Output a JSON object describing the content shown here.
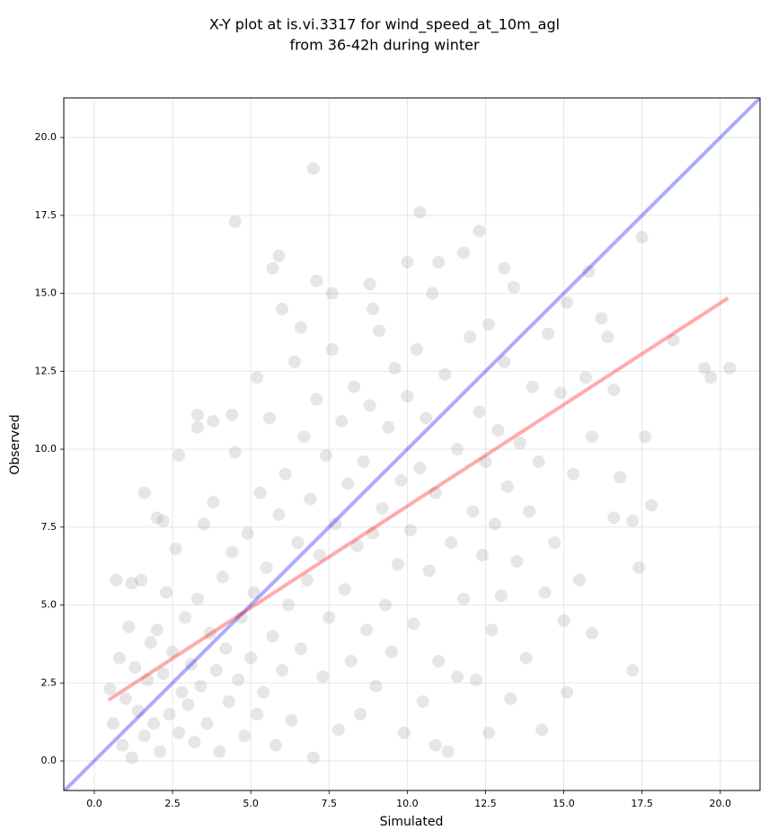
{
  "chart_data": {
    "type": "scatter",
    "title": [
      "X-Y plot at is.vi.3317 for wind_speed_at_10m_agl",
      "from 36-42h during winter"
    ],
    "x_label": "Simulated",
    "y_label": "Observed",
    "color": "gray",
    "grid": true,
    "xlim": [
      -0.975,
      21.27
    ],
    "ylim": [
      -0.95,
      21.27
    ],
    "xticks": [
      {
        "value": 0,
        "label": "0.0"
      },
      2.5,
      {
        "value": 5,
        "label": "5.0"
      },
      7.5,
      {
        "value": 10,
        "label": "10.0"
      },
      12.5,
      {
        "value": 15,
        "label": "15.0"
      },
      17.5,
      {
        "value": 20,
        "label": "20.0"
      }
    ],
    "yticks": [
      {
        "value": 0,
        "label": "0.0"
      },
      2.5,
      {
        "value": 5,
        "label": "5.0"
      },
      7.5,
      {
        "value": 10,
        "label": "10.0"
      },
      12.5,
      {
        "value": 15,
        "label": "15.0"
      },
      17.5,
      {
        "value": 20,
        "label": "20.0"
      }
    ],
    "x": [
      0.5,
      0.6,
      0.8,
      0.9,
      1.0,
      1.1,
      1.2,
      1.3,
      1.4,
      1.5,
      1.6,
      1.7,
      1.8,
      1.9,
      2.0,
      2.1,
      2.2,
      2.3,
      2.4,
      2.5,
      2.6,
      2.7,
      2.8,
      2.9,
      3.0,
      0.7,
      1.2,
      2.0,
      2.2,
      3.1,
      3.2,
      3.3,
      3.4,
      3.5,
      3.6,
      3.7,
      3.8,
      3.9,
      4.0,
      4.1,
      4.2,
      4.3,
      4.4,
      4.5,
      4.6,
      4.7,
      4.8,
      4.9,
      5.0,
      5.1,
      5.2,
      5.3,
      5.4,
      5.5,
      5.6,
      5.7,
      5.8,
      5.9,
      6.0,
      4.4,
      5.2,
      3.3,
      6.1,
      6.2,
      6.3,
      6.4,
      6.5,
      6.6,
      6.7,
      6.8,
      6.9,
      7.0,
      7.1,
      7.2,
      7.3,
      7.4,
      7.5,
      7.6,
      7.7,
      7.8,
      7.9,
      8.0,
      8.1,
      8.2,
      8.3,
      8.4,
      8.5,
      8.6,
      8.7,
      8.8,
      8.9,
      9.0,
      9.1,
      9.2,
      9.3,
      9.4,
      9.5,
      9.6,
      9.7,
      9.8,
      9.9,
      10.0,
      6.6,
      8.9,
      7.6,
      8.8,
      6.0,
      10.1,
      10.2,
      10.3,
      10.4,
      10.5,
      10.6,
      10.7,
      10.8,
      10.9,
      11.0,
      11.2,
      11.4,
      11.6,
      11.8,
      12.0,
      12.1,
      12.2,
      12.3,
      12.4,
      12.5,
      12.6,
      12.7,
      12.8,
      12.9,
      13.0,
      13.1,
      13.2,
      13.3,
      13.4,
      13.5,
      13.6,
      13.8,
      13.9,
      14.0,
      11.3,
      10.9,
      11.6,
      14.2,
      14.4,
      14.5,
      14.7,
      14.9,
      15.0,
      15.1,
      15.3,
      15.5,
      15.7,
      15.9,
      16.2,
      16.4,
      16.6,
      16.8,
      17.2,
      17.6,
      17.8,
      18.5,
      16.6,
      7.0,
      4.5,
      10.4,
      19.5,
      20.3,
      19.7,
      17.5,
      15.1,
      14.3,
      12.6,
      17.4,
      17.2,
      15.9,
      1.6,
      2.7,
      3.3,
      3.8,
      5.9,
      5.7,
      7.1,
      10.0,
      11.0,
      11.8,
      12.3,
      13.1,
      15.8
    ],
    "values": [
      2.3,
      1.2,
      3.3,
      0.5,
      2.0,
      4.3,
      0.1,
      3.0,
      1.6,
      5.8,
      0.8,
      2.6,
      3.8,
      1.2,
      4.2,
      0.3,
      2.8,
      5.4,
      1.5,
      3.5,
      6.8,
      0.9,
      2.2,
      4.6,
      1.8,
      5.8,
      5.7,
      7.8,
      7.7,
      3.1,
      0.6,
      5.2,
      2.4,
      7.6,
      1.2,
      4.1,
      8.3,
      2.9,
      0.3,
      5.9,
      3.6,
      1.9,
      6.7,
      9.9,
      2.6,
      4.6,
      0.8,
      7.3,
      3.3,
      5.4,
      1.5,
      8.6,
      2.2,
      6.2,
      11.0,
      4.0,
      0.5,
      7.9,
      2.9,
      11.1,
      12.3,
      10.7,
      9.2,
      5.0,
      1.3,
      12.8,
      7.0,
      3.6,
      10.4,
      5.8,
      8.4,
      0.1,
      11.6,
      6.6,
      2.7,
      9.8,
      4.6,
      13.2,
      7.6,
      1.0,
      10.9,
      5.5,
      8.9,
      3.2,
      12.0,
      6.9,
      1.5,
      9.6,
      4.2,
      11.4,
      7.3,
      2.4,
      13.8,
      8.1,
      5.0,
      10.7,
      3.5,
      12.6,
      6.3,
      9.0,
      0.9,
      11.7,
      13.9,
      14.5,
      15.0,
      15.3,
      14.5,
      7.4,
      4.4,
      13.2,
      9.4,
      1.9,
      11.0,
      6.1,
      15.0,
      8.6,
      3.2,
      12.4,
      7.0,
      10.0,
      5.2,
      13.6,
      8.0,
      2.6,
      11.2,
      6.6,
      9.6,
      14.0,
      4.2,
      7.6,
      10.6,
      5.3,
      12.8,
      8.8,
      2.0,
      15.2,
      6.4,
      10.2,
      3.3,
      8.0,
      12.0,
      0.3,
      0.5,
      2.7,
      9.6,
      5.4,
      13.7,
      7.0,
      11.8,
      4.5,
      14.7,
      9.2,
      5.8,
      12.3,
      10.4,
      14.2,
      13.6,
      11.9,
      9.1,
      7.7,
      10.4,
      8.2,
      13.5,
      7.8,
      19.0,
      17.3,
      17.6,
      12.6,
      12.6,
      12.3,
      16.8,
      2.2,
      1.0,
      0.9,
      6.2,
      2.9,
      4.1,
      8.6,
      9.8,
      11.1,
      10.9,
      16.2,
      15.8,
      15.4,
      16.0,
      16.0,
      16.3,
      17.0,
      15.8,
      15.7
    ],
    "lines": [
      {
        "color": "blue",
        "x": [
          -0.975,
          21.27
        ],
        "values": [
          -0.975,
          21.27
        ]
      },
      {
        "color": "red",
        "x": [
          0.45,
          20.25
        ],
        "values": [
          1.95,
          14.85
        ]
      }
    ]
  }
}
